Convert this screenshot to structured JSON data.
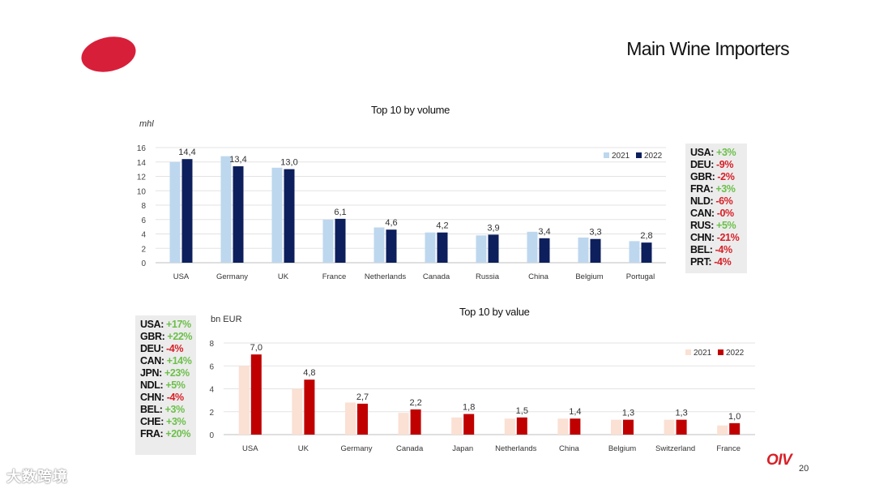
{
  "page": {
    "title": "Main Wine Importers",
    "page_number": "20",
    "brand": "OIV",
    "watermark": "大数跨境"
  },
  "colors": {
    "brand_red": "#d81f3a",
    "volume_2021": "#bdd7ee",
    "volume_2022": "#0d1f5c",
    "value_2021": "#fbe0d4",
    "value_2022": "#c00000",
    "positive": "#6cc04a",
    "negative": "#d81f26"
  },
  "chart_data": [
    {
      "type": "bar",
      "title": "Top 10 by volume",
      "ylabel": "mhl",
      "categories": [
        "USA",
        "Germany",
        "UK",
        "France",
        "Netherlands",
        "Canada",
        "Russia",
        "China",
        "Belgium",
        "Portugal"
      ],
      "series": [
        {
          "name": "2021",
          "values": [
            14.0,
            14.8,
            13.2,
            6.0,
            4.9,
            4.2,
            3.8,
            4.3,
            3.5,
            3.0
          ]
        },
        {
          "name": "2022",
          "values": [
            14.4,
            13.4,
            13.0,
            6.1,
            4.6,
            4.2,
            3.9,
            3.4,
            3.3,
            2.8
          ]
        }
      ],
      "data_labels": [
        "14,4",
        "13,4",
        "13,0",
        "6,1",
        "4,6",
        "4,2",
        "3,9",
        "3,4",
        "3,3",
        "2,8"
      ],
      "yticks": [
        "0",
        "2",
        "4",
        "6",
        "8",
        "10",
        "12",
        "14",
        "16"
      ],
      "ylim": [
        0,
        16
      ],
      "grid": true,
      "legend": "top-right"
    },
    {
      "type": "bar",
      "title": "Top 10 by value",
      "ylabel": "bn EUR",
      "categories": [
        "USA",
        "UK",
        "Germany",
        "Canada",
        "Japan",
        "Netherlands",
        "China",
        "Belgium",
        "Switzerland",
        "France"
      ],
      "series": [
        {
          "name": "2021",
          "values": [
            6.0,
            4.0,
            2.8,
            1.9,
            1.5,
            1.4,
            1.4,
            1.3,
            1.3,
            0.8
          ]
        },
        {
          "name": "2022",
          "values": [
            7.0,
            4.8,
            2.7,
            2.2,
            1.8,
            1.5,
            1.4,
            1.3,
            1.3,
            1.0
          ]
        }
      ],
      "data_labels": [
        "7,0",
        "4,8",
        "2,7",
        "2,2",
        "1,8",
        "1,5",
        "1,4",
        "1,3",
        "1,3",
        "1,0"
      ],
      "yticks": [
        "0",
        "2",
        "4",
        "6",
        "8"
      ],
      "ylim": [
        0,
        8
      ],
      "grid": true,
      "legend": "top-right"
    }
  ],
  "volume_changes": [
    {
      "code": "USA:",
      "change": "+3%",
      "sign": "pos"
    },
    {
      "code": "DEU:",
      "change": "-9%",
      "sign": "neg"
    },
    {
      "code": "GBR:",
      "change": "-2%",
      "sign": "neg"
    },
    {
      "code": "FRA:",
      "change": "+3%",
      "sign": "pos"
    },
    {
      "code": "NLD:",
      "change": "-6%",
      "sign": "neg"
    },
    {
      "code": "CAN:",
      "change": "-0%",
      "sign": "neg"
    },
    {
      "code": "RUS:",
      "change": "+5%",
      "sign": "pos"
    },
    {
      "code": "CHN:",
      "change": "-21%",
      "sign": "neg"
    },
    {
      "code": "BEL:",
      "change": "-4%",
      "sign": "neg"
    },
    {
      "code": "PRT:",
      "change": "-4%",
      "sign": "neg"
    }
  ],
  "value_changes": [
    {
      "code": "USA:",
      "change": "+17%",
      "sign": "pos"
    },
    {
      "code": "GBR:",
      "change": "+22%",
      "sign": "pos"
    },
    {
      "code": "DEU:",
      "change": "-4%",
      "sign": "neg"
    },
    {
      "code": "CAN:",
      "change": "+14%",
      "sign": "pos"
    },
    {
      "code": "JPN:",
      "change": "+23%",
      "sign": "pos"
    },
    {
      "code": "NDL:",
      "change": "+5%",
      "sign": "pos"
    },
    {
      "code": "CHN:",
      "change": " -4%",
      "sign": "neg"
    },
    {
      "code": "BEL:",
      "change": "+3%",
      "sign": "pos"
    },
    {
      "code": "CHE:",
      "change": "+3%",
      "sign": "pos"
    },
    {
      "code": "FRA:",
      "change": "+20%",
      "sign": "pos"
    }
  ]
}
